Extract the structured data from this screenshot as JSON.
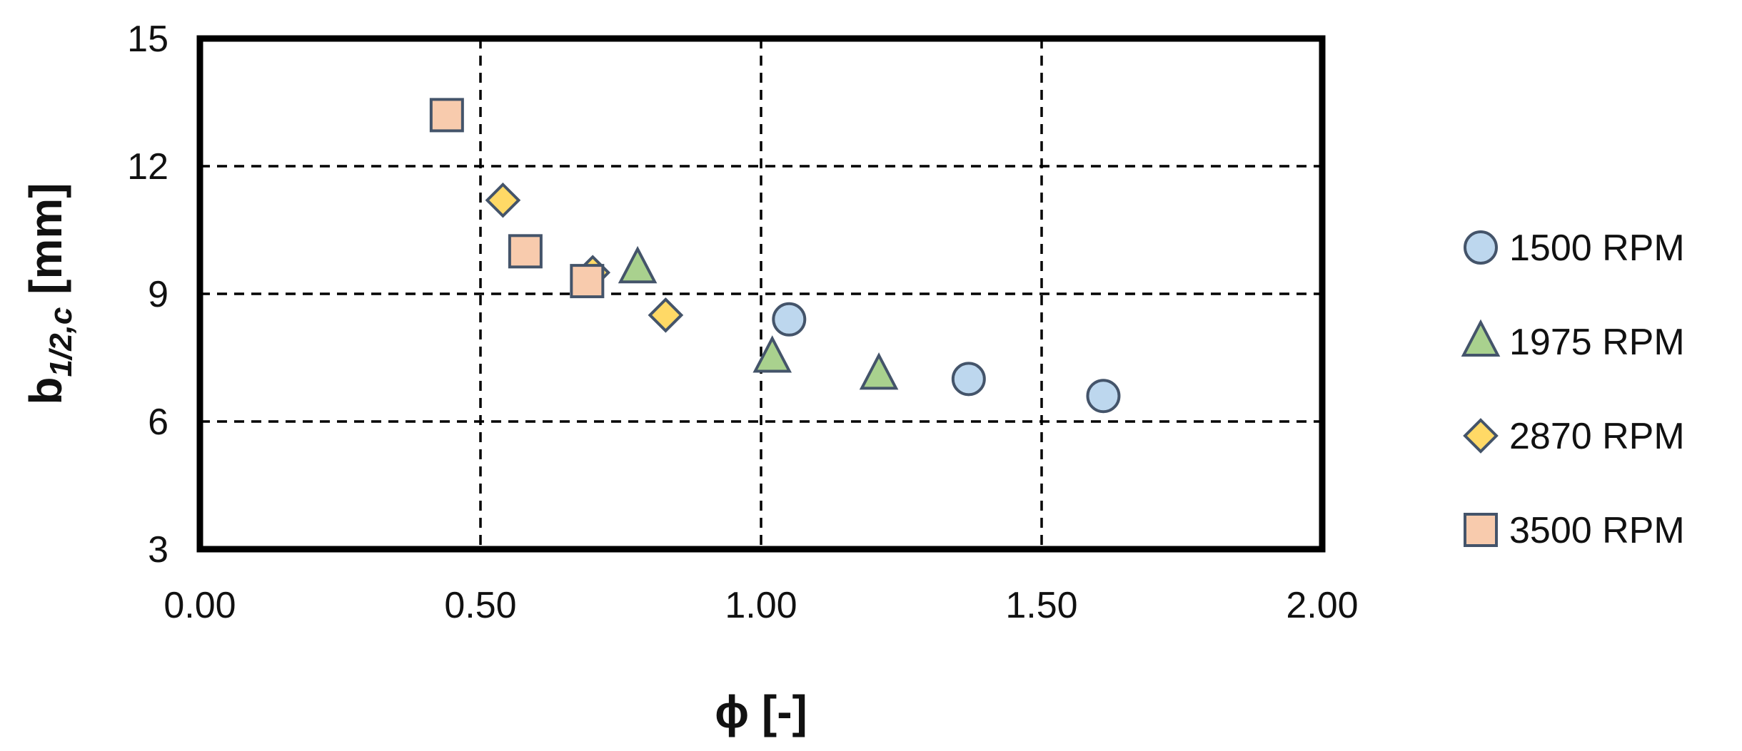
{
  "chart_data": {
    "type": "scatter",
    "title": "",
    "xlabel": {
      "main": "ϕ [-]"
    },
    "ylabel": {
      "base": "b",
      "sub": "1/2,c",
      "unit": " [mm]"
    },
    "xlim": [
      0,
      2
    ],
    "ylim": [
      3,
      15
    ],
    "xticks": [
      0,
      0.5,
      1,
      1.5,
      2
    ],
    "xtick_labels": [
      "0.00",
      "0.50",
      "1.00",
      "1.50",
      "2.00"
    ],
    "yticks": [
      3,
      6,
      9,
      12,
      15
    ],
    "ytick_labels": [
      "3",
      "6",
      "9",
      "12",
      "15"
    ],
    "grid": true,
    "legend_position": "right",
    "series": [
      {
        "name": "1500 RPM",
        "marker": "circle",
        "color": "#bdd7ee",
        "points": [
          [
            1.05,
            8.4
          ],
          [
            1.37,
            7.0
          ],
          [
            1.61,
            6.6
          ]
        ]
      },
      {
        "name": "1975 RPM",
        "marker": "triangle",
        "color": "#a9d18e",
        "points": [
          [
            0.78,
            9.6
          ],
          [
            1.02,
            7.5
          ],
          [
            1.21,
            7.1
          ]
        ]
      },
      {
        "name": "2870 RPM",
        "marker": "diamond",
        "color": "#ffd966",
        "points": [
          [
            0.54,
            11.2
          ],
          [
            0.7,
            9.5
          ],
          [
            0.83,
            8.5
          ]
        ]
      },
      {
        "name": "3500 RPM",
        "marker": "square",
        "color": "#f8cbad",
        "points": [
          [
            0.44,
            13.2
          ],
          [
            0.58,
            10.0
          ],
          [
            0.69,
            9.3
          ]
        ]
      }
    ],
    "marker_stroke": "#44546a"
  }
}
